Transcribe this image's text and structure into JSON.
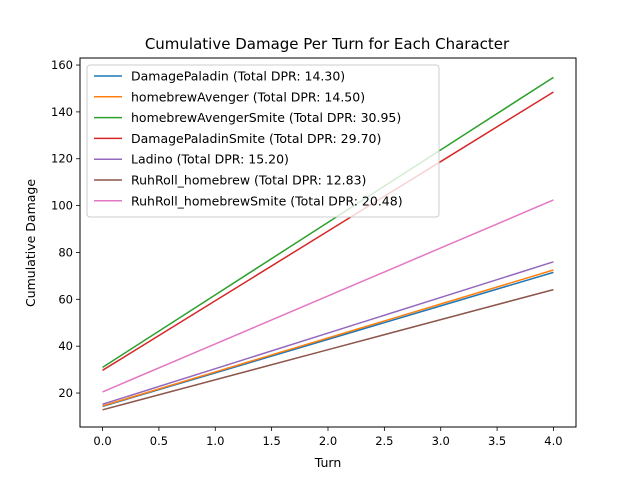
{
  "chart_data": {
    "type": "line",
    "title": "Cumulative Damage Per Turn for Each Character",
    "xlabel": "Turn",
    "ylabel": "Cumulative Damage",
    "xlim": [
      -0.2,
      4.2
    ],
    "ylim": [
      5.5,
      163
    ],
    "x_ticks": [
      "0.0",
      "0.5",
      "1.0",
      "1.5",
      "2.0",
      "2.5",
      "3.0",
      "3.5",
      "4.0"
    ],
    "x_tick_values": [
      0,
      0.5,
      1,
      1.5,
      2,
      2.5,
      3,
      3.5,
      4
    ],
    "y_ticks": [
      "20",
      "40",
      "60",
      "80",
      "100",
      "120",
      "140",
      "160"
    ],
    "y_tick_values": [
      20,
      40,
      60,
      80,
      100,
      120,
      140,
      160
    ],
    "grid": false,
    "legend_position": "top-left",
    "x": [
      0,
      1,
      2,
      3,
      4
    ],
    "series": [
      {
        "name": "DamagePaladin (Total DPR: 14.30)",
        "color": "#1f77b4",
        "values": [
          14.3,
          28.6,
          42.9,
          57.2,
          71.5
        ]
      },
      {
        "name": "homebrewAvenger (Total DPR: 14.50)",
        "color": "#ff7f0e",
        "values": [
          14.5,
          29.0,
          43.5,
          58.0,
          72.5
        ]
      },
      {
        "name": "homebrewAvengerSmite (Total DPR: 30.95)",
        "color": "#2ca02c",
        "values": [
          30.95,
          61.9,
          92.85,
          123.8,
          154.75
        ]
      },
      {
        "name": "DamagePaladinSmite (Total DPR: 29.70)",
        "color": "#d62728",
        "values": [
          29.7,
          59.4,
          89.1,
          118.8,
          148.5
        ]
      },
      {
        "name": "Ladino (Total DPR: 15.20)",
        "color": "#9467bd",
        "values": [
          15.2,
          30.4,
          45.6,
          60.8,
          76.0
        ]
      },
      {
        "name": "RuhRoll_homebrew (Total DPR: 12.83)",
        "color": "#8c564b",
        "values": [
          12.83,
          25.66,
          38.49,
          51.32,
          64.15
        ]
      },
      {
        "name": "RuhRoll_homebrewSmite (Total DPR: 20.48)",
        "color": "#e377c2",
        "values": [
          20.48,
          40.96,
          61.44,
          81.92,
          102.4
        ]
      }
    ]
  }
}
